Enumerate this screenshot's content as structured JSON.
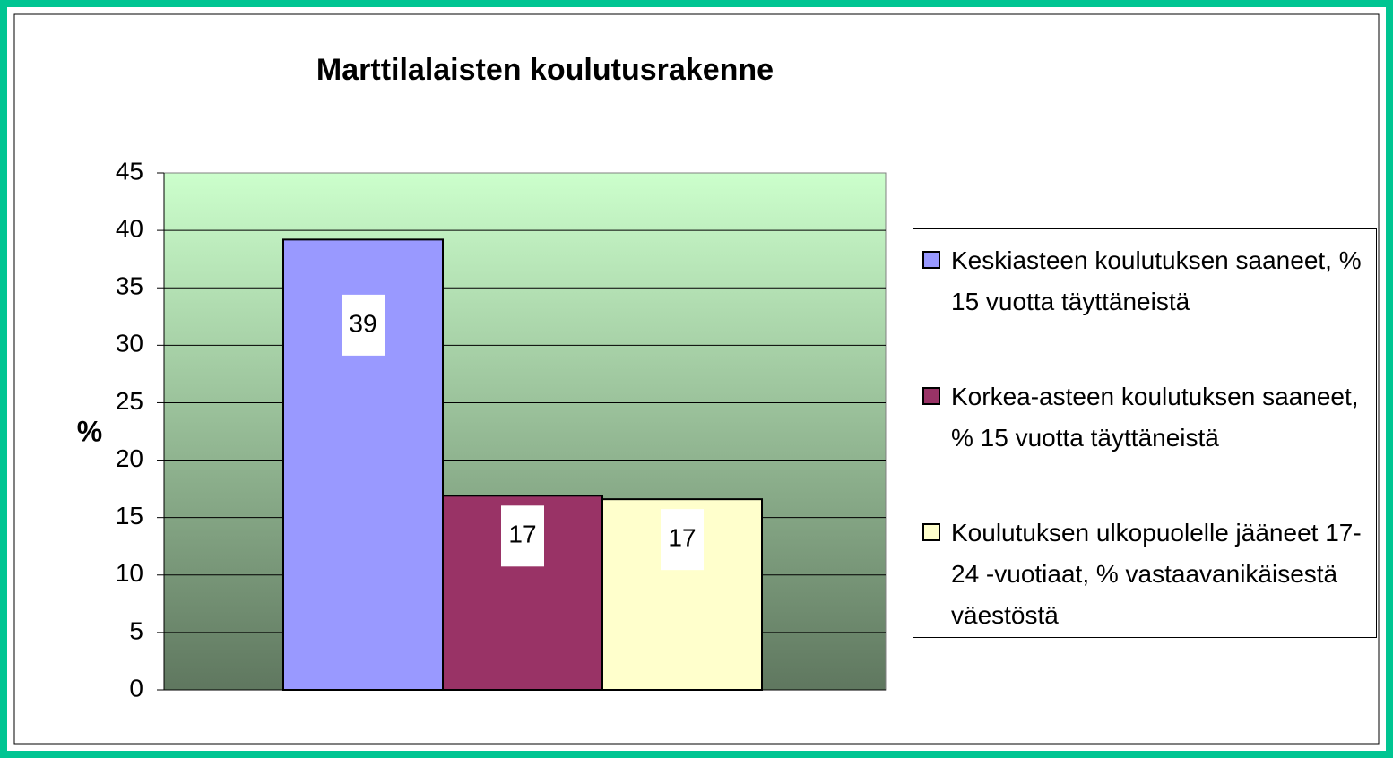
{
  "chart_data": {
    "type": "bar",
    "title": "Marttilalaisten koulutusrakenne",
    "y_label": "%",
    "series": [
      {
        "name": "Keskiasteen koulutuksen saaneet, % 15 vuotta täyttäneistä",
        "color": "#9999ff",
        "values": [
          39.2
        ],
        "value_labels": [
          "39"
        ]
      },
      {
        "name": "Korkea-asteen koulutuksen saaneet, % 15 vuotta täyttäneistä",
        "color": "#993366",
        "values": [
          16.9
        ],
        "value_labels": [
          "17"
        ]
      },
      {
        "name": "Koulutuksen ulkopuolelle jääneet 17-24 -vuotiaat, % vastaavanikäisestä väestöstä",
        "color": "#ffffcc",
        "values": [
          16.6
        ],
        "value_labels": [
          "17"
        ]
      }
    ],
    "ylim": [
      0,
      45
    ],
    "yticks": [
      0,
      5,
      10,
      15,
      20,
      25,
      30,
      35,
      40,
      45
    ],
    "grid": true,
    "legend": "right"
  }
}
